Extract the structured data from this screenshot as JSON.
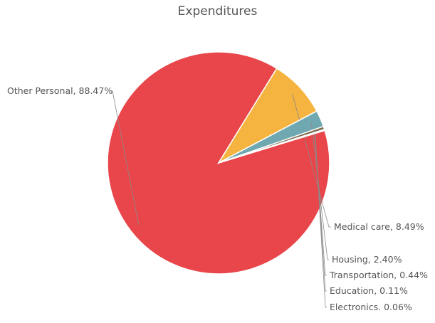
{
  "chart_data": {
    "type": "pie",
    "title": "Expenditures",
    "slices": [
      {
        "name": "Other Personal",
        "value": 88.47,
        "label": "Other Personal, 88.47%",
        "color": "#E8464A"
      },
      {
        "name": "Medical care",
        "value": 8.49,
        "label": "Medical care, 8.49%",
        "color": "#F5B43F"
      },
      {
        "name": "Housing",
        "value": 2.4,
        "label": "Housing, 2.40%",
        "color": "#6FA8B0"
      },
      {
        "name": "Transportation",
        "value": 0.44,
        "label": "Transportation, 0.44%",
        "color": "#7A6A4F"
      },
      {
        "name": "Education",
        "value": 0.11,
        "label": "Education, 0.11%",
        "color": "#A9B23B"
      },
      {
        "name": "Electronics",
        "value": 0.06,
        "label": "Electronics. 0.06%",
        "color": "#4A8FB8"
      }
    ]
  }
}
